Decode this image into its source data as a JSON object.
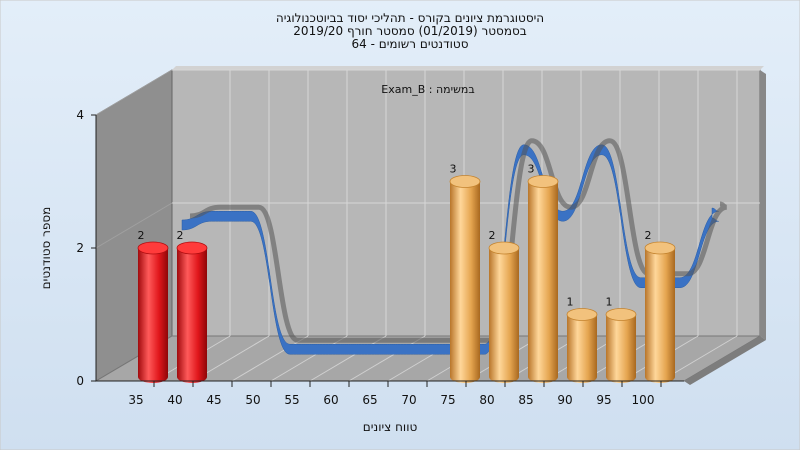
{
  "chart_data": {
    "type": "bar",
    "title_lines": [
      "היסטוגרמת ציונים בקורס - תהליכי יסוד בביוטכנולוגיה",
      "בסמסטר  (01/2019)  סמסטר חורף 2019/20",
      "סטודנטים רשומים - 64"
    ],
    "annotation": "Exam_B : במשימה",
    "xlabel": "טווח ציונים",
    "ylabel": "מספר סטודנטים",
    "categories": [
      "35",
      "40",
      "45",
      "50",
      "55",
      "60",
      "65",
      "70",
      "75",
      "80",
      "85",
      "90",
      "95",
      "100"
    ],
    "values": [
      2,
      2,
      0,
      0,
      0,
      0,
      0,
      0,
      3,
      2,
      3,
      1,
      1,
      2
    ],
    "y_ticks": [
      "0",
      "2",
      "4"
    ],
    "ylim": [
      0,
      4
    ],
    "grid": true,
    "bar_colors": {
      "failing": "#e0161b",
      "passing": "#e5a550"
    },
    "trend_ribbon_color": "#3a72c4",
    "trend_ribbon_back_color": "#555555",
    "background_color": "#dbe8f6",
    "wall_color": "#b4b4b4"
  }
}
